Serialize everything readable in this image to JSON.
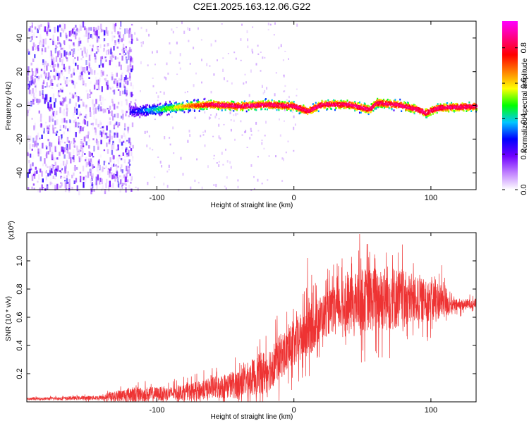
{
  "title": "C2E1.2025.163.12.06.G22",
  "chart_data": [
    {
      "type": "heatmap",
      "name": "spectrogram",
      "xlabel": "Height of straight line (km)",
      "ylabel": "Frequency (Hz)",
      "xlim": [
        -195,
        133
      ],
      "ylim": [
        -50,
        50
      ],
      "xticks": [
        -100,
        0,
        100
      ],
      "yticks": [
        -40,
        -20,
        0,
        20,
        40
      ],
      "colorbar": {
        "label": "Normalized spectral amplitude",
        "range": [
          0,
          0.95
        ],
        "ticks": [
          0,
          0.2,
          0.4,
          0.6,
          0.8
        ],
        "tick_labels": [
          "0.0",
          "0.2",
          "0.4",
          "0.6",
          "0.8"
        ],
        "colormap": [
          "#ffffff",
          "#c080ff",
          "#7000ff",
          "#0000ff",
          "#00c8ff",
          "#00ff00",
          "#ffff00",
          "#ff8000",
          "#ff0000",
          "#ff0080",
          "#ff00ff"
        ]
      },
      "noise_region_x": [
        -195,
        -118
      ],
      "signal_centerline": [
        {
          "x": -120,
          "f": -3
        },
        {
          "x": -100,
          "f": -2
        },
        {
          "x": -80,
          "f": 0
        },
        {
          "x": -60,
          "f": 1
        },
        {
          "x": -40,
          "f": 0
        },
        {
          "x": -20,
          "f": 1
        },
        {
          "x": 0,
          "f": 0
        },
        {
          "x": 10,
          "f": -3
        },
        {
          "x": 20,
          "f": 1
        },
        {
          "x": 40,
          "f": 1
        },
        {
          "x": 55,
          "f": -2
        },
        {
          "x": 60,
          "f": 2
        },
        {
          "x": 75,
          "f": 1
        },
        {
          "x": 90,
          "f": -2
        },
        {
          "x": 96,
          "f": -4
        },
        {
          "x": 105,
          "f": -1
        },
        {
          "x": 133,
          "f": 0
        }
      ]
    },
    {
      "type": "line",
      "name": "snr",
      "xlabel": "Height of straight line (km)",
      "ylabel": "SNR (10 * v/v)",
      "yscale_label": "(x10^4)",
      "xlim": [
        -195,
        133
      ],
      "ylim": [
        0,
        1.2
      ],
      "xticks": [
        -100,
        0,
        100
      ],
      "yticks": [
        0.2,
        0.4,
        0.6,
        0.8,
        1.0
      ],
      "ytick_labels": [
        "0.2",
        "0.4",
        "0.6",
        "0.8",
        "1.0"
      ],
      "color": "#ee3333",
      "envelope": [
        {
          "x": -195,
          "mean": 0.02,
          "spread": 0.01
        },
        {
          "x": -140,
          "mean": 0.03,
          "spread": 0.02
        },
        {
          "x": -120,
          "mean": 0.05,
          "spread": 0.07
        },
        {
          "x": -90,
          "mean": 0.06,
          "spread": 0.06
        },
        {
          "x": -70,
          "mean": 0.08,
          "spread": 0.08
        },
        {
          "x": -40,
          "mean": 0.13,
          "spread": 0.13
        },
        {
          "x": -20,
          "mean": 0.22,
          "spread": 0.2
        },
        {
          "x": -10,
          "mean": 0.32,
          "spread": 0.2
        },
        {
          "x": 0,
          "mean": 0.4,
          "spread": 0.2
        },
        {
          "x": 10,
          "mean": 0.5,
          "spread": 0.25
        },
        {
          "x": 20,
          "mean": 0.6,
          "spread": 0.2
        },
        {
          "x": 30,
          "mean": 0.66,
          "spread": 0.2
        },
        {
          "x": 50,
          "mean": 0.72,
          "spread": 0.28
        },
        {
          "x": 70,
          "mean": 0.74,
          "spread": 0.3
        },
        {
          "x": 90,
          "mean": 0.72,
          "spread": 0.2
        },
        {
          "x": 110,
          "mean": 0.72,
          "spread": 0.16
        },
        {
          "x": 115,
          "mean": 0.68,
          "spread": 0.06
        },
        {
          "x": 133,
          "mean": 0.7,
          "spread": 0.04
        }
      ],
      "notable_peaks": [
        {
          "x": 10,
          "y": 1.02
        },
        {
          "x": 48,
          "y": 1.19
        },
        {
          "x": 54,
          "y": 1.12
        },
        {
          "x": 72,
          "y": 1.04
        },
        {
          "x": 110,
          "y": 0.88
        }
      ]
    }
  ]
}
